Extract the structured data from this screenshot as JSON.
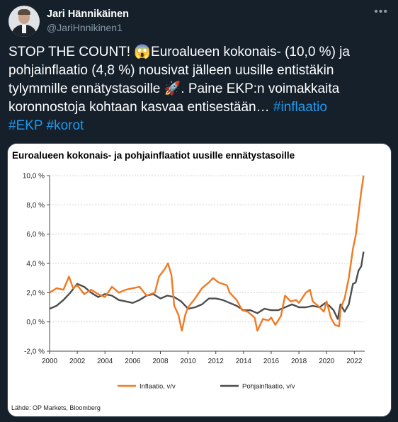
{
  "tweet": {
    "author_name": "Jari Hännikäinen",
    "author_handle": "@JariHnnikinen1",
    "more_icon": "more-icon",
    "text_pre": "STOP THE COUNT! 😱Euroalueen kokonais- (10,0 %) ja pohjainflaatio (4,8 %) nousivat jälleen uusille entistäkin tylymmille ennätystasoille 🚀. Paine EKP:n voimakkaita koronnostoja kohtaan kasvaa entisestään… ",
    "hashtags": [
      "#inflaatio",
      "#EKP",
      "#korot"
    ]
  },
  "chart_data": {
    "type": "line",
    "title": "Euroalueen kokonais- ja pohjainflaatiot uusille ennätystasoille",
    "source": "Lähde: OP Markets, Bloomberg",
    "ylabel": "",
    "xlabel": "",
    "xlim": [
      2000,
      2022.75
    ],
    "ylim": [
      -2,
      10
    ],
    "x_ticks": [
      "2000",
      "2002",
      "2004",
      "2006",
      "2008",
      "2010",
      "2012",
      "2014",
      "2016",
      "2018",
      "2020",
      "2022"
    ],
    "y_ticks": [
      "-2,0 %",
      "0,0 %",
      "2,0 %",
      "4,0 %",
      "6,0 %",
      "8,0 %",
      "10,0 %"
    ],
    "grid": true,
    "legend_position": "bottom",
    "series": [
      {
        "name": "Inflaatio, v/v",
        "color": "#f07a23",
        "points": [
          [
            2000,
            2.0
          ],
          [
            2000.5,
            2.3
          ],
          [
            2001,
            2.2
          ],
          [
            2001.4,
            3.1
          ],
          [
            2001.7,
            2.3
          ],
          [
            2002,
            2.5
          ],
          [
            2002.5,
            1.9
          ],
          [
            2003,
            2.2
          ],
          [
            2003.5,
            1.9
          ],
          [
            2004,
            1.7
          ],
          [
            2004.5,
            2.4
          ],
          [
            2005,
            2.0
          ],
          [
            2005.5,
            2.2
          ],
          [
            2006,
            2.3
          ],
          [
            2006.5,
            2.4
          ],
          [
            2007,
            1.8
          ],
          [
            2007.6,
            2.0
          ],
          [
            2007.9,
            3.1
          ],
          [
            2008.3,
            3.6
          ],
          [
            2008.55,
            4.0
          ],
          [
            2008.8,
            3.2
          ],
          [
            2009,
            1.1
          ],
          [
            2009.3,
            0.5
          ],
          [
            2009.55,
            -0.6
          ],
          [
            2009.8,
            0.5
          ],
          [
            2010,
            1.0
          ],
          [
            2010.5,
            1.6
          ],
          [
            2011,
            2.3
          ],
          [
            2011.5,
            2.7
          ],
          [
            2011.8,
            3.0
          ],
          [
            2012.2,
            2.7
          ],
          [
            2012.8,
            2.5
          ],
          [
            2013,
            2.0
          ],
          [
            2013.5,
            1.5
          ],
          [
            2013.9,
            0.8
          ],
          [
            2014.3,
            0.7
          ],
          [
            2014.8,
            0.3
          ],
          [
            2015,
            -0.6
          ],
          [
            2015.4,
            0.2
          ],
          [
            2015.8,
            0.1
          ],
          [
            2016,
            0.3
          ],
          [
            2016.3,
            -0.2
          ],
          [
            2016.7,
            0.4
          ],
          [
            2017,
            1.8
          ],
          [
            2017.4,
            1.4
          ],
          [
            2017.8,
            1.5
          ],
          [
            2018,
            1.3
          ],
          [
            2018.5,
            2.0
          ],
          [
            2018.8,
            2.2
          ],
          [
            2019,
            1.4
          ],
          [
            2019.5,
            1.0
          ],
          [
            2019.8,
            0.7
          ],
          [
            2020,
            1.4
          ],
          [
            2020.3,
            0.3
          ],
          [
            2020.6,
            -0.2
          ],
          [
            2020.9,
            -0.3
          ],
          [
            2021,
            0.9
          ],
          [
            2021.3,
            1.6
          ],
          [
            2021.6,
            3.0
          ],
          [
            2021.9,
            5.0
          ],
          [
            2022.1,
            5.9
          ],
          [
            2022.3,
            7.4
          ],
          [
            2022.5,
            8.9
          ],
          [
            2022.67,
            10.0
          ]
        ]
      },
      {
        "name": "Pohjainflaatio, v/v",
        "color": "#4d4d4d",
        "points": [
          [
            2000,
            0.9
          ],
          [
            2000.5,
            1.1
          ],
          [
            2001,
            1.5
          ],
          [
            2001.5,
            2.0
          ],
          [
            2002,
            2.6
          ],
          [
            2002.5,
            2.4
          ],
          [
            2003,
            2.0
          ],
          [
            2003.5,
            1.7
          ],
          [
            2004,
            1.9
          ],
          [
            2004.5,
            1.8
          ],
          [
            2005,
            1.5
          ],
          [
            2005.5,
            1.4
          ],
          [
            2006,
            1.3
          ],
          [
            2006.5,
            1.5
          ],
          [
            2007,
            1.8
          ],
          [
            2007.5,
            1.9
          ],
          [
            2008,
            1.6
          ],
          [
            2008.5,
            1.8
          ],
          [
            2009,
            1.7
          ],
          [
            2009.5,
            1.4
          ],
          [
            2010,
            0.9
          ],
          [
            2010.5,
            1.0
          ],
          [
            2011,
            1.2
          ],
          [
            2011.5,
            1.6
          ],
          [
            2012,
            1.6
          ],
          [
            2012.5,
            1.5
          ],
          [
            2013,
            1.3
          ],
          [
            2013.5,
            1.1
          ],
          [
            2014,
            0.8
          ],
          [
            2014.5,
            0.8
          ],
          [
            2015,
            0.6
          ],
          [
            2015.5,
            0.9
          ],
          [
            2016,
            0.8
          ],
          [
            2016.5,
            0.8
          ],
          [
            2017,
            1.0
          ],
          [
            2017.5,
            1.2
          ],
          [
            2018,
            1.0
          ],
          [
            2018.5,
            1.0
          ],
          [
            2019,
            1.1
          ],
          [
            2019.5,
            1.0
          ],
          [
            2019.9,
            1.3
          ],
          [
            2020.2,
            1.1
          ],
          [
            2020.5,
            0.8
          ],
          [
            2020.8,
            0.2
          ],
          [
            2021,
            1.2
          ],
          [
            2021.3,
            0.7
          ],
          [
            2021.6,
            1.2
          ],
          [
            2021.9,
            2.6
          ],
          [
            2022.1,
            2.7
          ],
          [
            2022.3,
            3.5
          ],
          [
            2022.5,
            3.8
          ],
          [
            2022.67,
            4.8
          ]
        ]
      }
    ]
  }
}
